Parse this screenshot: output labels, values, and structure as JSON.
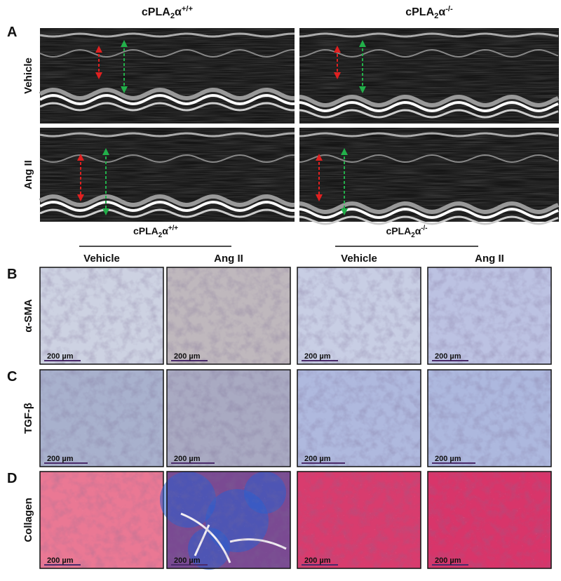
{
  "panel_a": {
    "letter": "A",
    "columns": [
      {
        "name": "cPLA",
        "sub": "2",
        "greek": "α",
        "sup": "+/+"
      },
      {
        "name": "cPLA",
        "sub": "2",
        "greek": "α",
        "sup": "-/-"
      }
    ],
    "rows": [
      "Vehicle",
      "Ang II"
    ]
  },
  "panels_bcd": {
    "groups": [
      {
        "name": "cPLA",
        "sub": "2",
        "greek": "α",
        "sup": "+/+"
      },
      {
        "name": "cPLA",
        "sub": "2",
        "greek": "α",
        "sup": "-/-"
      }
    ],
    "columns": [
      "Vehicle",
      "Ang II",
      "Vehicle",
      "Ang II"
    ],
    "rows": [
      {
        "letter": "B",
        "label": "α-SMA",
        "scale_bars": [
          "200 µm",
          "200 µm",
          "200 µm",
          "200 µm"
        ]
      },
      {
        "letter": "C",
        "label": "TGF-β",
        "scale_bars": [
          "200 µm",
          "200 µm",
          "200 µm",
          "200 µm"
        ]
      },
      {
        "letter": "D",
        "label": "Collagen",
        "scale_bars": [
          "200 µm",
          "200 µm",
          "200 µm",
          "200 µm"
        ]
      }
    ]
  }
}
